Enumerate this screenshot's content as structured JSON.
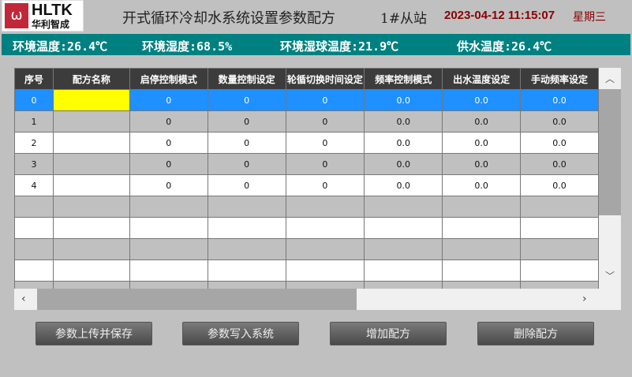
{
  "header": {
    "logo_en": "HLTK",
    "logo_cn": "华利智成",
    "title": "开式循环冷却水系统设置参数配方",
    "station": "1#从站",
    "datetime": "2023-04-12 11:15:07",
    "weekday": "星期三"
  },
  "status": {
    "env_temp": "环境温度:26.4℃",
    "env_humidity": "环境湿度:68.5%",
    "wet_bulb": "环境湿球温度:21.9℃",
    "supply_temp": "供水温度:26.4℃"
  },
  "table": {
    "columns": [
      "序号",
      "配方名称",
      "启停控制模式",
      "数量控制设定",
      "轮循切换时间设定",
      "频率控制模式",
      "出水温度设定",
      "手动频率设定"
    ],
    "rows": [
      [
        "0",
        "",
        "0",
        "0",
        "0",
        "0.0",
        "0.0",
        "0.0"
      ],
      [
        "1",
        "",
        "0",
        "0",
        "0",
        "0.0",
        "0.0",
        "0.0"
      ],
      [
        "2",
        "",
        "0",
        "0",
        "0",
        "0.0",
        "0.0",
        "0.0"
      ],
      [
        "3",
        "",
        "0",
        "0",
        "0",
        "0.0",
        "0.0",
        "0.0"
      ],
      [
        "4",
        "",
        "0",
        "0",
        "0",
        "0.0",
        "0.0",
        "0.0"
      ],
      [
        "",
        "",
        "",
        "",
        "",
        "",
        "",
        ""
      ],
      [
        "",
        "",
        "",
        "",
        "",
        "",
        "",
        ""
      ],
      [
        "",
        "",
        "",
        "",
        "",
        "",
        "",
        ""
      ],
      [
        "",
        "",
        "",
        "",
        "",
        "",
        "",
        ""
      ],
      [
        "",
        "",
        "",
        "",
        "",
        "",
        "",
        ""
      ]
    ],
    "selected_row": 0
  },
  "buttons": {
    "upload": "参数上传并保存",
    "write": "参数写入系统",
    "add": "增加配方",
    "delete": "删除配方"
  },
  "colors": {
    "teal": "#008080",
    "selected": "#1e90ff",
    "edit_cell": "#ffff00",
    "datetime": "#8b0000"
  }
}
